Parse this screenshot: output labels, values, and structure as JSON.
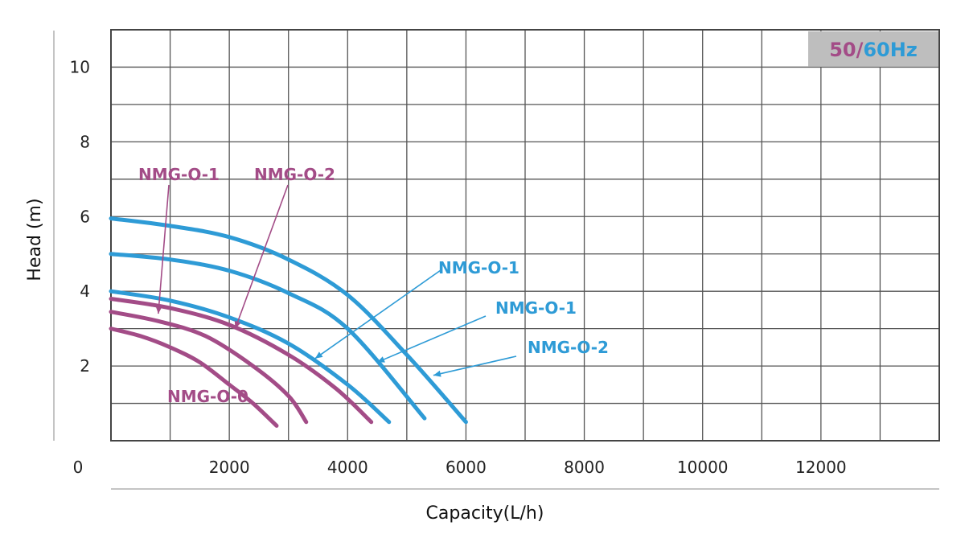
{
  "chart_data": {
    "type": "line",
    "title": "",
    "xlabel": "Capacity(L/h)",
    "ylabel": "Head (m)",
    "xlim": [
      0,
      14000
    ],
    "ylim": [
      0,
      11
    ],
    "grid": true,
    "x_ticks": [
      "0",
      "2000",
      "4000",
      "6000",
      "8000",
      "10000",
      "12000"
    ],
    "x_tick_values": [
      0,
      2000,
      4000,
      6000,
      8000,
      10000,
      12000
    ],
    "y_ticks": [
      "2",
      "4",
      "6",
      "8",
      "10"
    ],
    "y_tick_values": [
      2,
      4,
      6,
      8,
      10
    ],
    "frequency_badge": {
      "part1": "50/",
      "part2": "60Hz",
      "color1": "#A34C87",
      "color2": "#2E9BD6",
      "background": "#BEBEBE"
    },
    "colors": {
      "hz50": "#A34C87",
      "hz60": "#2E9BD6"
    },
    "series": [
      {
        "name": "NMG-O-0",
        "group": "50Hz",
        "x": [
          0,
          500,
          1000,
          1500,
          2000,
          2400,
          2800
        ],
        "y": [
          3.0,
          2.8,
          2.5,
          2.1,
          1.5,
          1.0,
          0.4
        ]
      },
      {
        "name": "NMG-O-1",
        "group": "50Hz",
        "x": [
          0,
          800,
          1600,
          2400,
          3000,
          3300
        ],
        "y": [
          3.45,
          3.2,
          2.8,
          2.0,
          1.2,
          0.5
        ]
      },
      {
        "name": "NMG-O-2",
        "group": "50Hz",
        "x": [
          0,
          1000,
          2000,
          3000,
          3800,
          4400
        ],
        "y": [
          3.8,
          3.55,
          3.1,
          2.3,
          1.4,
          0.5
        ]
      },
      {
        "name": "NMG-O-1",
        "group": "60Hz",
        "x": [
          0,
          1000,
          2000,
          3000,
          4000,
          4700
        ],
        "y": [
          4.0,
          3.75,
          3.3,
          2.6,
          1.5,
          0.5
        ]
      },
      {
        "name": "NMG-O-1",
        "group": "60Hz",
        "x": [
          0,
          1000,
          2000,
          3000,
          4000,
          5300
        ],
        "y": [
          5.0,
          4.85,
          4.55,
          3.95,
          3.0,
          0.6
        ]
      },
      {
        "name": "NMG-O-2",
        "group": "60Hz",
        "x": [
          0,
          1000,
          2000,
          3000,
          4000,
          5000,
          6000
        ],
        "y": [
          5.95,
          5.75,
          5.45,
          4.85,
          3.9,
          2.3,
          0.5
        ]
      }
    ],
    "annotations": [
      {
        "text": "NMG-O-1",
        "group": "50Hz",
        "target_series": 1,
        "target": [
          800,
          3.4
        ]
      },
      {
        "text": "NMG-O-2",
        "group": "50Hz",
        "target_series": 2,
        "target": [
          2100,
          3.0
        ]
      },
      {
        "text": "NMG-O-0",
        "group": "50Hz",
        "target_series": 0,
        "target": null
      },
      {
        "text": "NMG-O-1",
        "group": "60Hz",
        "target_series": 3,
        "target": [
          3450,
          2.2
        ]
      },
      {
        "text": "NMG-O-1",
        "group": "60Hz",
        "target_series": 4,
        "target": [
          4500,
          2.1
        ]
      },
      {
        "text": "NMG-O-2",
        "group": "60Hz",
        "target_series": 5,
        "target": [
          5450,
          1.75
        ]
      }
    ]
  }
}
